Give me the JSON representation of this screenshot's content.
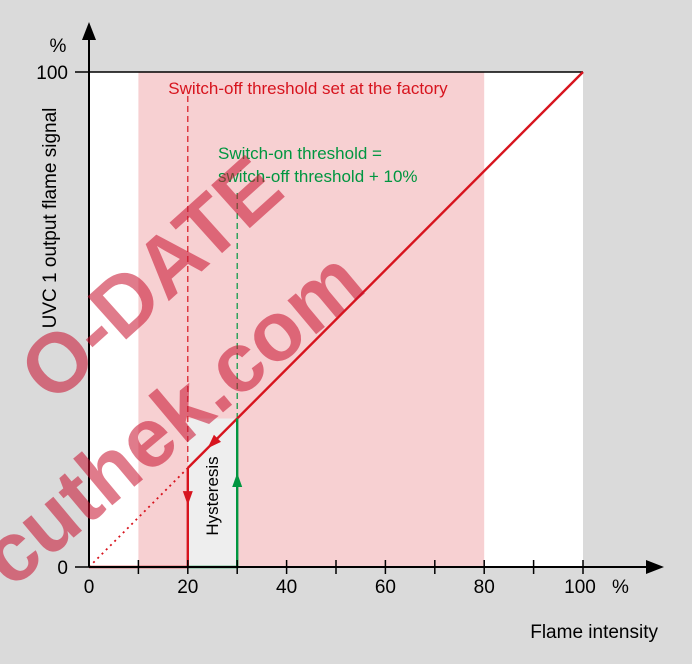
{
  "chart_data": {
    "type": "line",
    "title": "",
    "xlabel": "Flame intensity",
    "ylabel": "UVC 1 output flame signal",
    "y_unit": "%",
    "x_unit_label": "%",
    "xlim": [
      0,
      100
    ],
    "ylim": [
      0,
      100
    ],
    "x_ticks": [
      0,
      10,
      20,
      30,
      40,
      50,
      60,
      70,
      80,
      90,
      100
    ],
    "x_tick_labels": [
      {
        "value": 0,
        "label": "0"
      },
      {
        "value": 20,
        "label": "20"
      },
      {
        "value": 40,
        "label": "40"
      },
      {
        "value": 60,
        "label": "60"
      },
      {
        "value": 80,
        "label": "80"
      },
      {
        "value": 100,
        "label": "100"
      }
    ],
    "y_tick_labels": [
      {
        "value": 0,
        "label": "0"
      },
      {
        "value": 100,
        "label": "100"
      }
    ],
    "shaded_band": {
      "x_from": 10,
      "x_to": 80,
      "color": "#f7d0d2"
    },
    "hysteresis_area": {
      "x_from": 20,
      "x_to": 30,
      "color": "#eeeeee",
      "label": "Hysteresis"
    },
    "series": [
      {
        "role": "signal-line",
        "color": "#d7141e",
        "points": [
          [
            20,
            20
          ],
          [
            100,
            100
          ]
        ]
      },
      {
        "role": "dotted-ideal-line",
        "color": "#d7141e",
        "points": [
          [
            0,
            0
          ],
          [
            20,
            20
          ]
        ]
      },
      {
        "role": "switch-off-path",
        "color": "#d7141e",
        "points": [
          [
            0,
            0
          ],
          [
            20,
            0
          ],
          [
            20,
            20
          ]
        ]
      },
      {
        "role": "switch-on-path",
        "color": "#009640",
        "points": [
          [
            20,
            0
          ],
          [
            30,
            0
          ],
          [
            30,
            30
          ]
        ]
      }
    ],
    "thresholds": {
      "switch_off": {
        "x": 20,
        "color": "#d7141e"
      },
      "switch_on": {
        "x": 30,
        "color": "#009640"
      }
    },
    "annotations": [
      {
        "text": "Switch-off threshold set at the factory",
        "color": "#d7141e"
      },
      {
        "text": "Switch-on threshold =",
        "color": "#009640"
      },
      {
        "text": "switch-off threshold + 10%",
        "color": "#009640"
      }
    ],
    "watermark": {
      "lines": [
        "O-DATE",
        "cuthek.com"
      ],
      "color": "#c8102e"
    }
  }
}
